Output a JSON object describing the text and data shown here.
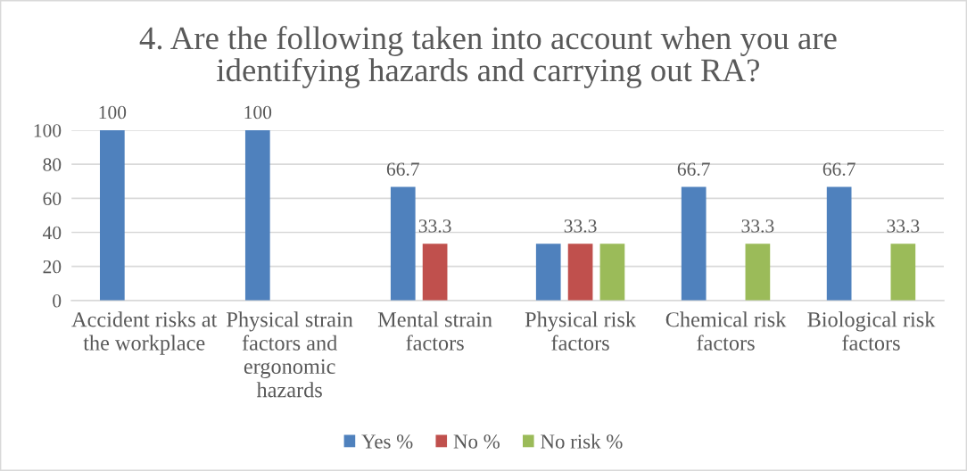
{
  "chart_data": {
    "type": "bar",
    "title": "4. Are the following taken into account when you are\nidentifying hazards and carrying out RA?",
    "categories": [
      "Accident risks at\nthe workplace",
      "Physical strain\nfactors and\nergonomic\nhazards",
      "Mental strain\nfactors",
      "Physical risk\nfactors",
      "Chemical risk\nfactors",
      "Biological risk\nfactors"
    ],
    "series": [
      {
        "name": "Yes %",
        "color": "#4f81bd",
        "values": [
          100,
          100,
          66.7,
          33.3,
          66.7,
          66.7
        ],
        "value_labels": [
          "100",
          "100",
          "66.7",
          null,
          "66.7",
          "66.7"
        ]
      },
      {
        "name": "No %",
        "color": "#c0504d",
        "values": [
          null,
          null,
          33.3,
          33.3,
          null,
          null
        ],
        "value_labels": [
          null,
          null,
          "33.3",
          "33.3",
          null,
          null
        ]
      },
      {
        "name": "No risk %",
        "color": "#9bbb59",
        "values": [
          null,
          null,
          null,
          33.3,
          33.3,
          33.3
        ],
        "value_labels": [
          null,
          null,
          null,
          null,
          "33.3",
          "33.3"
        ]
      }
    ],
    "ylim": [
      0,
      100
    ],
    "yticks": [
      0,
      20,
      40,
      60,
      80,
      100
    ],
    "grid": "y",
    "legend": "bottom"
  }
}
